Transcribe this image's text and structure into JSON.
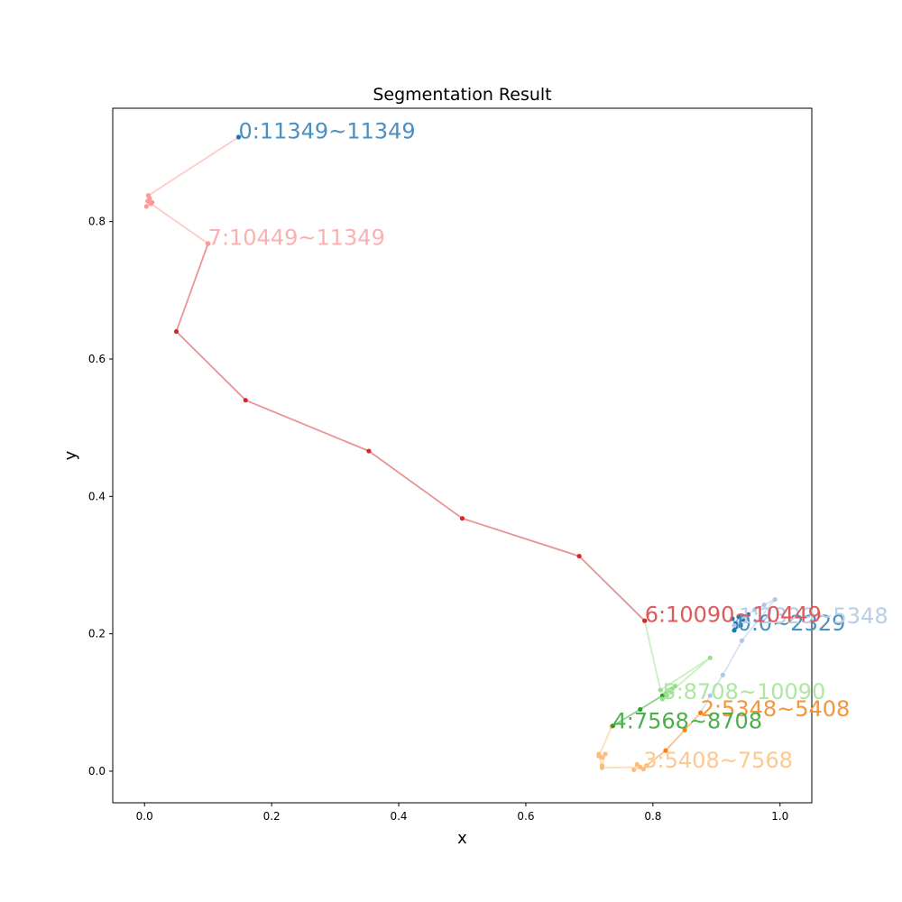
{
  "chart_data": {
    "type": "line",
    "title": "Segmentation Result",
    "xlabel": "x",
    "ylabel": "y",
    "xlim": [
      -0.05,
      1.05
    ],
    "ylim": [
      -0.046,
      0.965
    ],
    "xticks": [
      0.0,
      0.2,
      0.4,
      0.6,
      0.8,
      1.0
    ],
    "xtick_labels": [
      "0.0",
      "0.2",
      "0.4",
      "0.6",
      "0.8",
      "1.0"
    ],
    "yticks": [
      0.0,
      0.2,
      0.4,
      0.6,
      0.8
    ],
    "ytick_labels": [
      "0.0",
      "0.2",
      "0.4",
      "0.6",
      "0.8"
    ],
    "grid": false,
    "legend": false,
    "series": [
      {
        "label": "0:0~2329",
        "color": "#1f77b4",
        "label_color": "#4a90c2",
        "label_pos": [
          0.933,
          0.205
        ],
        "points": [
          [
            0.925,
            0.222
          ],
          [
            0.93,
            0.215
          ],
          [
            0.935,
            0.225
          ],
          [
            0.94,
            0.218
          ],
          [
            0.93,
            0.21
          ],
          [
            0.945,
            0.222
          ],
          [
            0.95,
            0.228
          ],
          [
            0.938,
            0.212
          ],
          [
            0.928,
            0.205
          ]
        ]
      },
      {
        "label": "1:2329~5348",
        "color": "#aec7e8",
        "label_color": "#b8cfe6",
        "label_pos": [
          0.935,
          0.215
        ],
        "points": [
          [
            0.928,
            0.212
          ],
          [
            0.945,
            0.225
          ],
          [
            0.96,
            0.235
          ],
          [
            0.975,
            0.242
          ],
          [
            0.992,
            0.25
          ],
          [
            0.94,
            0.19
          ],
          [
            0.91,
            0.14
          ],
          [
            0.89,
            0.11
          ],
          [
            0.875,
            0.085
          ]
        ]
      },
      {
        "label": "2:5348~5408",
        "color": "#ff7f0e",
        "label_color": "#f5963a",
        "label_pos": [
          0.875,
          0.08
        ],
        "points": [
          [
            0.875,
            0.085
          ],
          [
            0.85,
            0.06
          ],
          [
            0.82,
            0.03
          ],
          [
            0.79,
            0.008
          ]
        ]
      },
      {
        "label": "3:5408~7568",
        "color": "#ffbb78",
        "label_color": "#fcc98f",
        "label_pos": [
          0.785,
          0.005
        ],
        "points": [
          [
            0.79,
            0.008
          ],
          [
            0.785,
            0.003
          ],
          [
            0.775,
            0.01
          ],
          [
            0.77,
            0.002
          ],
          [
            0.78,
            0.006
          ],
          [
            0.72,
            0.005
          ],
          [
            0.715,
            0.025
          ],
          [
            0.72,
            0.02
          ],
          [
            0.725,
            0.025
          ],
          [
            0.72,
            0.008
          ],
          [
            0.715,
            0.022
          ],
          [
            0.735,
            0.065
          ]
        ]
      },
      {
        "label": "4:7568~8708",
        "color": "#2ca02c",
        "label_color": "#4caf4c",
        "label_pos": [
          0.737,
          0.062
        ],
        "points": [
          [
            0.737,
            0.066
          ],
          [
            0.78,
            0.09
          ],
          [
            0.815,
            0.11
          ],
          [
            0.82,
            0.113
          ]
        ]
      },
      {
        "label": "5:8708~10090",
        "color": "#98df8a",
        "label_color": "#aee6a2",
        "label_pos": [
          0.815,
          0.105
        ],
        "points": [
          [
            0.82,
            0.113
          ],
          [
            0.825,
            0.118
          ],
          [
            0.83,
            0.12
          ],
          [
            0.835,
            0.124
          ],
          [
            0.83,
            0.115
          ],
          [
            0.822,
            0.11
          ],
          [
            0.815,
            0.105
          ],
          [
            0.89,
            0.165
          ],
          [
            0.812,
            0.118
          ],
          [
            0.787,
            0.219
          ]
        ]
      },
      {
        "label": "6:10090~10449",
        "color": "#d62728",
        "label_color": "#dc5a5a",
        "label_pos": [
          0.787,
          0.217
        ],
        "points": [
          [
            0.787,
            0.219
          ],
          [
            0.684,
            0.313
          ],
          [
            0.5,
            0.368
          ],
          [
            0.353,
            0.466
          ],
          [
            0.159,
            0.54
          ],
          [
            0.05,
            0.64
          ],
          [
            0.1,
            0.768
          ]
        ]
      },
      {
        "label": "7:10449~11349",
        "color": "#ff9896",
        "label_color": "#fbb1af",
        "label_pos": [
          0.1,
          0.766
        ],
        "points": [
          [
            0.1,
            0.768
          ],
          [
            0.01,
            0.826
          ],
          [
            0.005,
            0.83
          ],
          [
            0.008,
            0.834
          ],
          [
            0.003,
            0.822
          ],
          [
            0.012,
            0.828
          ],
          [
            0.006,
            0.838
          ],
          [
            0.148,
            0.923
          ]
        ]
      },
      {
        "label": "0:11349~11349",
        "color": "#1f77b4",
        "label_color": "#4a90c2",
        "label_pos": [
          0.148,
          0.921
        ],
        "points": [
          [
            0.148,
            0.923
          ]
        ]
      }
    ]
  }
}
